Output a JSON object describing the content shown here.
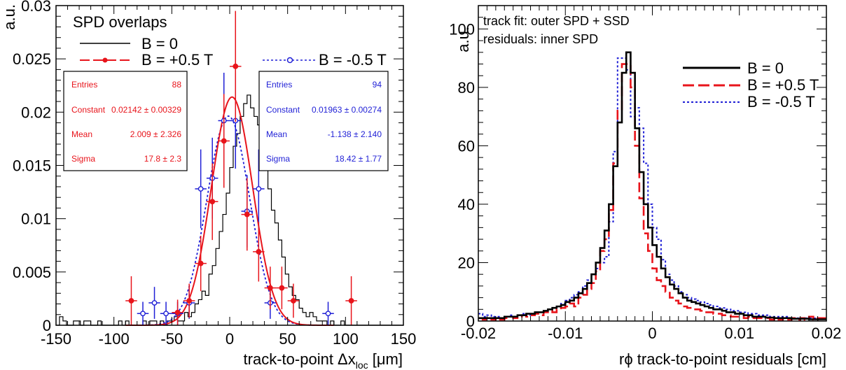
{
  "chart_data": [
    {
      "type": "histogram",
      "title": "SPD overlaps",
      "xlabel_main": "track-to-point Δx",
      "xlabel_sub": "loc",
      "xlabel_unit": "[μm]",
      "ylabel": "a.u.",
      "xlim": [
        -150,
        150
      ],
      "ylim": [
        0,
        0.03
      ],
      "xticks": [
        "-150",
        "-100",
        "-50",
        "0",
        "50",
        "100",
        "150"
      ],
      "yticks": [
        "0",
        "0.005",
        "0.01",
        "0.015",
        "0.02",
        "0.025",
        "0.03"
      ],
      "colors": {
        "b0": "#000000",
        "bplus": "#e8141b",
        "bminus": "#1f1fd6"
      },
      "legend": [
        {
          "label": "B = 0",
          "series": "b0"
        },
        {
          "label": "B = +0.5 T",
          "series": "bplus"
        },
        {
          "label": "B = -0.5 T",
          "series": "bminus"
        }
      ],
      "stats_plus": {
        "rows": [
          {
            "label": "Entries",
            "value": "88"
          },
          {
            "label": "Constant",
            "value": "0.02142 ± 0.00329"
          },
          {
            "label": "Mean",
            "value": "2.009 ± 2.326"
          },
          {
            "label": "Sigma",
            "value": "17.8 ± 2.3"
          }
        ]
      },
      "stats_minus": {
        "rows": [
          {
            "label": "Entries",
            "value": "94"
          },
          {
            "label": "Constant",
            "value": "0.01963 ± 0.00274"
          },
          {
            "label": "Mean",
            "value": "-1.138 ± 2.140"
          },
          {
            "label": "Sigma",
            "value": "18.42 ± 1.77"
          }
        ]
      },
      "fit_plus": {
        "constant": 0.02142,
        "mean": 2.009,
        "sigma": 17.8
      },
      "fit_minus": {
        "constant": 0.01963,
        "mean": -1.138,
        "sigma": 18.42
      },
      "b0_hist": {
        "bin_width": 3,
        "x_start": -150,
        "values": [
          0,
          0.0008,
          0.0004,
          0,
          0,
          0.0004,
          0.0004,
          0,
          0.0004,
          0.0004,
          0,
          0,
          0.0004,
          0,
          0,
          0,
          0,
          0,
          0.0004,
          0,
          0.0004,
          0,
          0,
          0,
          0,
          0.0004,
          0,
          0.0004,
          0.0004,
          0,
          0.0004,
          0,
          0.0004,
          0.0004,
          0.0008,
          0.0004,
          0.0004,
          0.0012,
          0.0008,
          0.0012,
          0.002,
          0.0024,
          0.0032,
          0.0028,
          0.0048,
          0.0056,
          0.0072,
          0.0088,
          0.0104,
          0.0124,
          0.0148,
          0.0168,
          0.018,
          0.0196,
          0.0208,
          0.0216,
          0.0204,
          0.0196,
          0.0188,
          0.0176,
          0.0152,
          0.0128,
          0.0108,
          0.0096,
          0.008,
          0.0064,
          0.0048,
          0.0036,
          0.0028,
          0.0024,
          0.0016,
          0.0012,
          0.0008,
          0.0012,
          0.0008,
          0.0004,
          0.0004,
          0.0004,
          0,
          0.0004,
          0,
          0,
          0.0004,
          0,
          0,
          0,
          0,
          0,
          0,
          0,
          0,
          0,
          0,
          0,
          0,
          0,
          0,
          0,
          0,
          0
        ]
      },
      "points_plus": {
        "x": [
          -85,
          -45,
          -35,
          -25,
          -15,
          -5,
          5,
          15,
          25,
          35,
          45,
          55,
          105
        ],
        "y": [
          0.0023,
          0.0012,
          0.0023,
          0.0058,
          0.0116,
          0.0173,
          0.0243,
          0.0104,
          0.0069,
          0.0035,
          0.0035,
          0.0023,
          0.0023
        ],
        "ex": 5,
        "ey": [
          0.0023,
          0.0012,
          0.0016,
          0.0026,
          0.0036,
          0.0044,
          0.0052,
          0.0034,
          0.0028,
          0.002,
          0.002,
          0.0016,
          0.0023
        ]
      },
      "points_minus": {
        "x": [
          -75,
          -65,
          -55,
          -45,
          -35,
          -25,
          -15,
          -5,
          5,
          15,
          25,
          35,
          85
        ],
        "y": [
          0.0011,
          0.0021,
          0.0011,
          0.0011,
          0.0021,
          0.0128,
          0.0138,
          0.0192,
          0.0192,
          0.0107,
          0.0128,
          0.0021,
          0.0011
        ],
        "ex": 5,
        "ey": [
          0.0011,
          0.0015,
          0.0011,
          0.0011,
          0.0015,
          0.0037,
          0.0038,
          0.0045,
          0.0045,
          0.0034,
          0.0037,
          0.0015,
          0.0011
        ]
      }
    },
    {
      "type": "histogram",
      "xlabel": "rϕ track-to-point residuals [cm]",
      "ylabel": "a.u.",
      "xlim": [
        -0.02,
        0.02
      ],
      "ylim": [
        0,
        108
      ],
      "xticks": [
        "-0.02",
        "-0.01",
        "0",
        "0.01",
        "0.02"
      ],
      "yticks": [
        "0",
        "20",
        "40",
        "60",
        "80",
        "100"
      ],
      "annotations": [
        "track fit: outer SPD + SSD",
        "residuals: inner SPD"
      ],
      "colors": {
        "b0": "#000000",
        "bplus": "#e8141b",
        "bminus": "#1f1fd6"
      },
      "legend": [
        {
          "label": "B = 0",
          "series": "b0"
        },
        {
          "label": "B = +0.5 T",
          "series": "bplus"
        },
        {
          "label": "B = -0.5 T",
          "series": "bminus"
        }
      ],
      "bin_width": 0.0005,
      "x_start": -0.02,
      "series": [
        {
          "key": "b0",
          "values": [
            1,
            1,
            1,
            1,
            1,
            1,
            1.5,
            1.5,
            1.5,
            2,
            2,
            2.5,
            2.5,
            3,
            3,
            3.5,
            4,
            4.5,
            5,
            5.5,
            6.5,
            7,
            8,
            9.5,
            11,
            13,
            16,
            20,
            25,
            31,
            40,
            53,
            68,
            85,
            92,
            85,
            66,
            51,
            40,
            32,
            26,
            22,
            18,
            15,
            12.5,
            11,
            9.5,
            8,
            7,
            6.5,
            6,
            5.5,
            5,
            4.5,
            4,
            4,
            3.5,
            3,
            3,
            2.5,
            2.5,
            2,
            2,
            1.5,
            1.5,
            1.5,
            1.2,
            1.2,
            1,
            1,
            1,
            1,
            0.8,
            0.8,
            0.8,
            0.8,
            0.6,
            0.6,
            0.6,
            0.6
          ]
        },
        {
          "key": "bplus",
          "values": [
            1,
            0.5,
            1,
            0.5,
            1,
            0.5,
            1,
            1.5,
            1,
            1.5,
            2,
            1.5,
            2,
            2.5,
            2,
            3,
            3.5,
            3,
            4,
            4.5,
            5,
            6,
            5,
            8,
            9,
            11,
            13,
            17,
            24,
            28,
            38,
            54,
            72,
            88,
            88,
            80,
            60,
            42,
            30,
            24,
            18,
            14,
            12,
            10,
            8,
            7,
            6,
            5,
            4.5,
            4,
            4,
            3.5,
            3,
            3,
            2.5,
            2.5,
            2,
            2,
            1.5,
            1.5,
            1.5,
            1,
            1.5,
            1,
            1,
            1,
            1,
            0.5,
            1,
            0.5,
            1,
            0.5,
            1,
            0.5,
            1,
            0.5,
            1.5,
            0.5,
            1,
            1
          ]
        },
        {
          "key": "bminus",
          "values": [
            2.5,
            1.5,
            2,
            1.5,
            1.5,
            1,
            1.5,
            2,
            1.5,
            2,
            2.5,
            2,
            2.5,
            3,
            3,
            3.5,
            4,
            4.5,
            5,
            6,
            7,
            8,
            9,
            10,
            12,
            14,
            16,
            18,
            20,
            22,
            34,
            58,
            90,
            90,
            86,
            70,
            73,
            66,
            54,
            40,
            32,
            28,
            21,
            16,
            14,
            12,
            10,
            9,
            8,
            7.5,
            7,
            6.5,
            6,
            5.5,
            5,
            4.5,
            4.5,
            4,
            3.5,
            3.5,
            3,
            3,
            2.5,
            2.5,
            2,
            2,
            2,
            1.5,
            1.5,
            1.5,
            1.5,
            1,
            1,
            1,
            1,
            1,
            1,
            1,
            1,
            1
          ]
        }
      ]
    }
  ]
}
